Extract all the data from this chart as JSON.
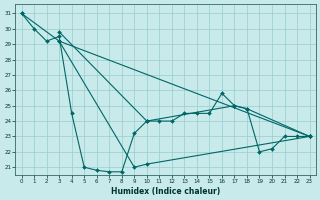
{
  "xlabel": "Humidex (Indice chaleur)",
  "bg_color": "#c8eaea",
  "grid_color": "#99cccc",
  "line_color": "#006666",
  "xlim": [
    -0.5,
    23.5
  ],
  "ylim": [
    20.5,
    31.6
  ],
  "yticks": [
    21,
    22,
    23,
    24,
    25,
    26,
    27,
    28,
    29,
    30,
    31
  ],
  "xticks": [
    0,
    1,
    2,
    3,
    4,
    5,
    6,
    7,
    8,
    9,
    10,
    11,
    12,
    13,
    14,
    15,
    16,
    17,
    18,
    19,
    20,
    21,
    22,
    23
  ],
  "series": [
    {
      "x": [
        0,
        1,
        2,
        3,
        4,
        5,
        6,
        7,
        8,
        9,
        10,
        11,
        12,
        13,
        14,
        15,
        16,
        17,
        18,
        19,
        20,
        21,
        22,
        23
      ],
      "y": [
        31,
        30,
        29.2,
        29.5,
        24.5,
        21,
        20.8,
        20.7,
        20.7,
        23.2,
        24,
        24,
        24,
        24.5,
        24.5,
        24.5,
        25.8,
        25.0,
        24.8,
        22,
        22.2,
        23,
        23,
        23
      ]
    },
    {
      "x": [
        0,
        3,
        9,
        10,
        23
      ],
      "y": [
        31,
        29.2,
        21,
        21.2,
        23
      ]
    },
    {
      "x": [
        3,
        10,
        17,
        18,
        23
      ],
      "y": [
        29.8,
        24,
        25.0,
        24.8,
        23
      ]
    },
    {
      "x": [
        3,
        23
      ],
      "y": [
        29.2,
        23
      ]
    }
  ]
}
